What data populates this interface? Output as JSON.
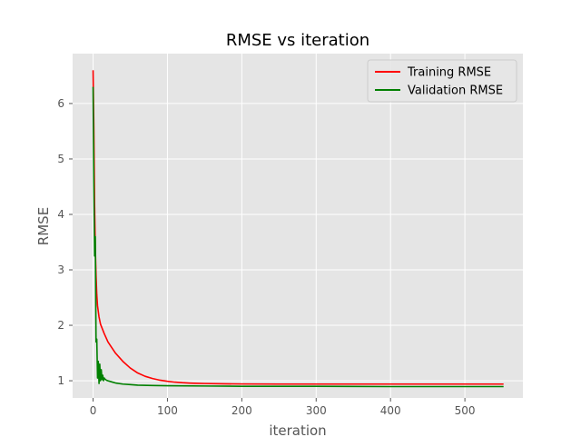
{
  "chart_data": {
    "type": "line",
    "title": "RMSE vs iteration",
    "xlabel": "iteration",
    "ylabel": "RMSE",
    "xlim": [
      -27.5,
      578
    ],
    "ylim": [
      0.69,
      6.9
    ],
    "xticks": [
      0,
      100,
      200,
      300,
      400,
      500
    ],
    "yticks": [
      1,
      2,
      3,
      4,
      5,
      6
    ],
    "grid": true,
    "background": "#E5E5E5",
    "grid_color": "#FFFFFF",
    "legend_position": "top-right",
    "series": [
      {
        "name": "Training RMSE",
        "color": "#FF0000",
        "x": [
          0,
          1,
          2,
          3,
          4,
          5,
          6,
          8,
          10,
          15,
          20,
          30,
          40,
          50,
          60,
          70,
          80,
          90,
          100,
          110,
          120,
          130,
          140,
          150,
          175,
          200,
          250,
          300,
          400,
          500,
          552
        ],
        "y": [
          6.6,
          5.6,
          4.2,
          3.4,
          2.9,
          2.55,
          2.35,
          2.15,
          2.02,
          1.85,
          1.7,
          1.5,
          1.35,
          1.23,
          1.14,
          1.08,
          1.04,
          1.01,
          0.99,
          0.975,
          0.965,
          0.958,
          0.953,
          0.95,
          0.945,
          0.942,
          0.94,
          0.94,
          0.94,
          0.94,
          0.94
        ]
      },
      {
        "name": "Validation RMSE",
        "color": "#008000",
        "x": [
          0,
          1,
          2,
          3,
          4,
          5,
          6,
          7,
          8,
          9,
          10,
          11,
          12,
          13,
          14,
          15,
          16,
          18,
          20,
          25,
          30,
          40,
          50,
          60,
          80,
          100,
          150,
          200,
          300,
          400,
          500,
          552
        ],
        "y": [
          6.3,
          4.6,
          3.25,
          3.6,
          1.7,
          1.75,
          1.05,
          1.35,
          0.95,
          1.3,
          1.0,
          1.2,
          1.02,
          1.1,
          1.0,
          1.05,
          1.03,
          1.01,
          1.0,
          0.98,
          0.96,
          0.94,
          0.93,
          0.92,
          0.915,
          0.91,
          0.905,
          0.9,
          0.9,
          0.895,
          0.895,
          0.895
        ]
      }
    ]
  }
}
